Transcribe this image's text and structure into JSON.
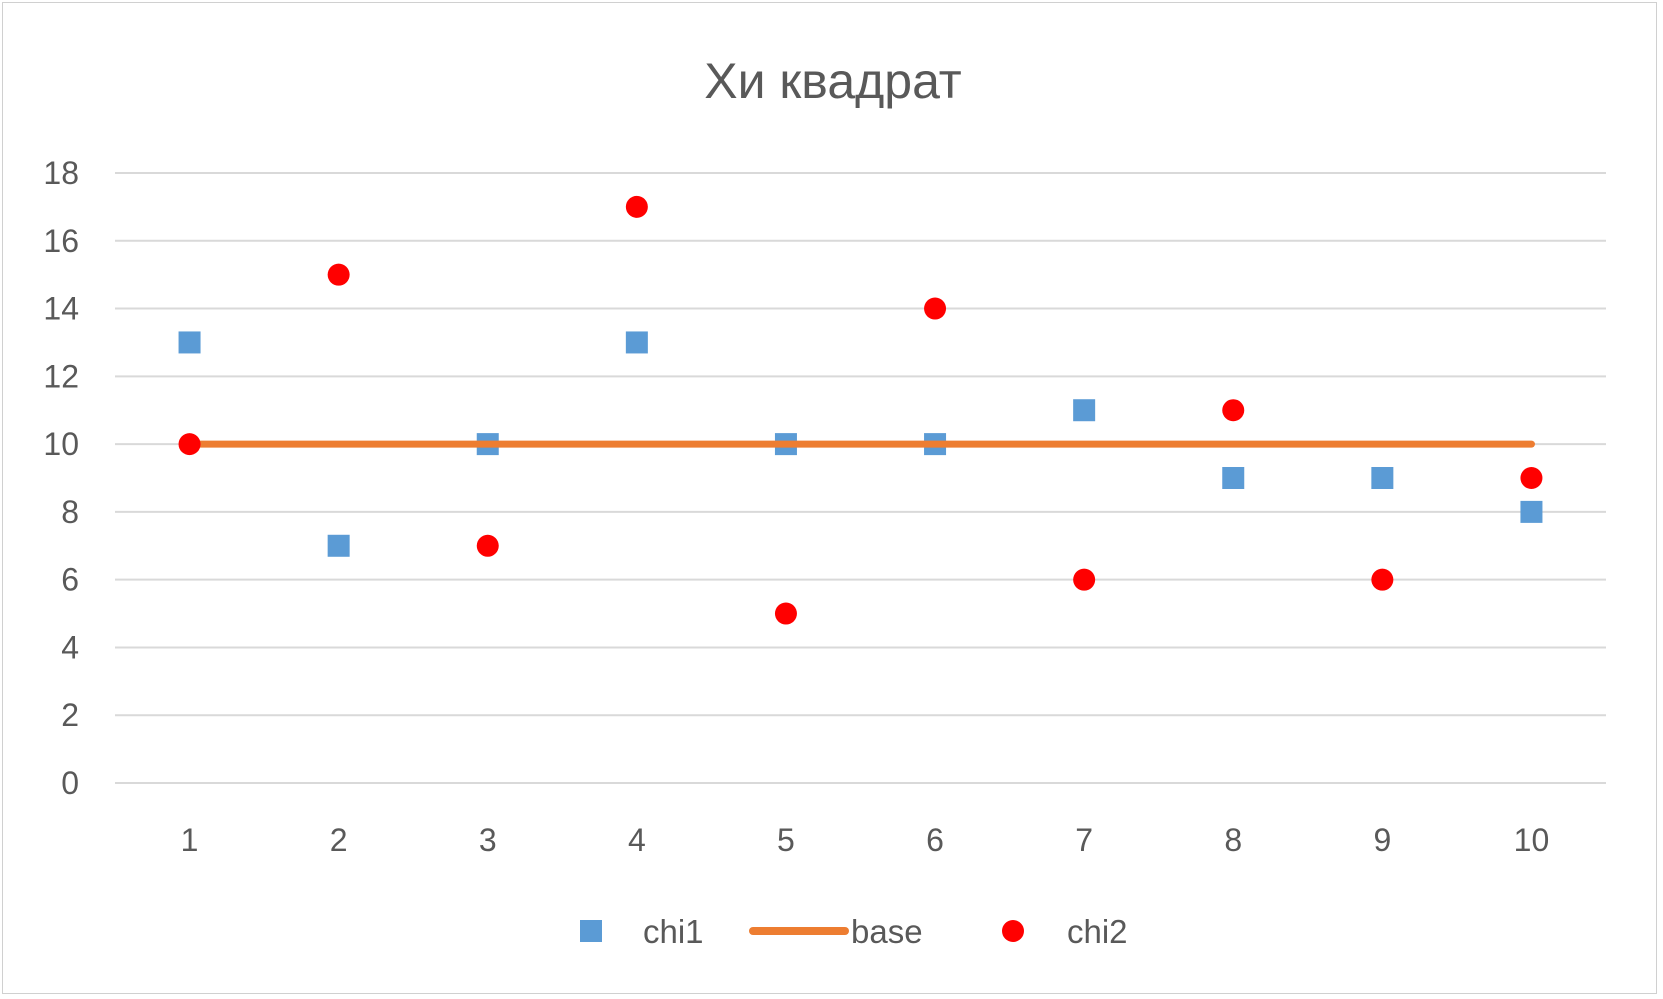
{
  "chart_data": {
    "type": "scatter",
    "title": "Хи квадрат",
    "xlabel": "",
    "ylabel": "",
    "x": [
      1,
      2,
      3,
      4,
      5,
      6,
      7,
      8,
      9,
      10
    ],
    "x_tick_labels": [
      "1",
      "2",
      "3",
      "4",
      "5",
      "6",
      "7",
      "8",
      "9",
      "10"
    ],
    "ylim": [
      0,
      18
    ],
    "y_ticks": [
      0,
      2,
      4,
      6,
      8,
      10,
      12,
      14,
      16,
      18
    ],
    "grid": true,
    "legend_position": "bottom",
    "series": [
      {
        "name": "chi1",
        "kind": "scatter",
        "marker": "square",
        "color": "#5B9BD5",
        "values": [
          13,
          7,
          10,
          13,
          10,
          10,
          11,
          9,
          9,
          8
        ]
      },
      {
        "name": "base",
        "kind": "line",
        "color": "#ED7D31",
        "values": [
          10,
          10,
          10,
          10,
          10,
          10,
          10,
          10,
          10,
          10
        ]
      },
      {
        "name": "chi2",
        "kind": "scatter",
        "marker": "circle",
        "color": "#FF0000",
        "values": [
          10,
          15,
          7,
          17,
          5,
          14,
          6,
          11,
          6,
          9
        ]
      }
    ]
  }
}
